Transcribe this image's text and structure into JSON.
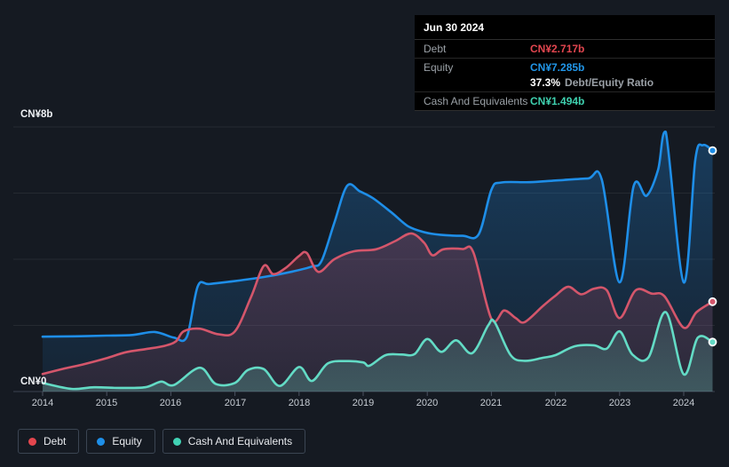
{
  "tooltip": {
    "date": "Jun 30 2024",
    "debt_label": "Debt",
    "debt_value": "CN¥2.717b",
    "equity_label": "Equity",
    "equity_value": "CN¥7.285b",
    "ratio_value": "37.3%",
    "ratio_label": "Debt/Equity Ratio",
    "cash_label": "Cash And Equivalents",
    "cash_value": "CN¥1.494b"
  },
  "legend": {
    "items": [
      {
        "label": "Debt",
        "color": "#e4464e"
      },
      {
        "label": "Equity",
        "color": "#1e8fe8"
      },
      {
        "label": "Cash And Equivalents",
        "color": "#41d2b4"
      }
    ]
  },
  "colors": {
    "background": "#151a22",
    "tooltip_bg": "#000000",
    "debt_value_text": "#e2464f",
    "equity_value_text": "#2196e8",
    "cash_value_text": "#3fd0af",
    "grid": "rgba(255,255,255,0.07)",
    "axis_line": "#3a4350"
  },
  "chart_data": {
    "type": "area",
    "x_tick_labels": [
      "2014",
      "2015",
      "2016",
      "2017",
      "2018",
      "2019",
      "2020",
      "2021",
      "2022",
      "2023",
      "2024"
    ],
    "x_ticks": [
      2014,
      2015,
      2016,
      2017,
      2018,
      2019,
      2020,
      2021,
      2022,
      2023,
      2024
    ],
    "x_range": [
      2014,
      2024.45
    ],
    "y_axis": {
      "top_label": "CN¥8b",
      "bottom_label": "CN¥0",
      "min": 0,
      "max": 8,
      "unit": "CN¥ billions"
    },
    "y_gridlines": [
      8,
      6,
      4,
      2
    ],
    "legend_position": "bottom-left",
    "series": [
      {
        "name": "Debt",
        "line_color": "#d4566b",
        "fill_from": "rgba(225,75,95,0.22)",
        "fill_to": "rgba(225,75,95,0.10)",
        "last_value": 2.717,
        "points": [
          [
            2014,
            0.53
          ],
          [
            2014.35,
            0.7
          ],
          [
            2014.65,
            0.83
          ],
          [
            2015,
            1.01
          ],
          [
            2015.3,
            1.19
          ],
          [
            2015.6,
            1.28
          ],
          [
            2015.9,
            1.38
          ],
          [
            2016.08,
            1.52
          ],
          [
            2016.2,
            1.82
          ],
          [
            2016.45,
            1.9
          ],
          [
            2016.75,
            1.73
          ],
          [
            2017,
            1.82
          ],
          [
            2017.25,
            2.85
          ],
          [
            2017.45,
            3.8
          ],
          [
            2017.6,
            3.55
          ],
          [
            2017.8,
            3.75
          ],
          [
            2018,
            4.1
          ],
          [
            2018.12,
            4.19
          ],
          [
            2018.3,
            3.62
          ],
          [
            2018.55,
            4.0
          ],
          [
            2018.85,
            4.24
          ],
          [
            2019.2,
            4.3
          ],
          [
            2019.5,
            4.55
          ],
          [
            2019.75,
            4.78
          ],
          [
            2019.95,
            4.5
          ],
          [
            2020.08,
            4.12
          ],
          [
            2020.25,
            4.3
          ],
          [
            2020.55,
            4.31
          ],
          [
            2020.72,
            4.2
          ],
          [
            2021,
            2.2
          ],
          [
            2021.2,
            2.45
          ],
          [
            2021.38,
            2.22
          ],
          [
            2021.52,
            2.1
          ],
          [
            2021.8,
            2.58
          ],
          [
            2022,
            2.9
          ],
          [
            2022.2,
            3.17
          ],
          [
            2022.4,
            2.94
          ],
          [
            2022.6,
            3.11
          ],
          [
            2022.8,
            3.06
          ],
          [
            2023,
            2.22
          ],
          [
            2023.25,
            3.06
          ],
          [
            2023.5,
            2.96
          ],
          [
            2023.7,
            2.88
          ],
          [
            2024,
            1.93
          ],
          [
            2024.2,
            2.4
          ],
          [
            2024.45,
            2.717
          ]
        ]
      },
      {
        "name": "Equity",
        "line_color": "#1e8ee8",
        "fill_from": "rgba(30,125,205,0.34)",
        "fill_to": "rgba(30,125,205,0.10)",
        "last_value": 7.285,
        "points": [
          [
            2014,
            1.66
          ],
          [
            2014.5,
            1.67
          ],
          [
            2015,
            1.69
          ],
          [
            2015.4,
            1.71
          ],
          [
            2015.75,
            1.8
          ],
          [
            2016.05,
            1.63
          ],
          [
            2016.25,
            1.66
          ],
          [
            2016.42,
            3.18
          ],
          [
            2016.6,
            3.25
          ],
          [
            2017,
            3.34
          ],
          [
            2017.5,
            3.48
          ],
          [
            2017.9,
            3.63
          ],
          [
            2018.2,
            3.78
          ],
          [
            2018.35,
            3.95
          ],
          [
            2018.55,
            5.1
          ],
          [
            2018.75,
            6.22
          ],
          [
            2018.95,
            6.05
          ],
          [
            2019.15,
            5.85
          ],
          [
            2019.45,
            5.4
          ],
          [
            2019.7,
            5.0
          ],
          [
            2019.95,
            4.82
          ],
          [
            2020.2,
            4.74
          ],
          [
            2020.55,
            4.71
          ],
          [
            2020.8,
            4.75
          ],
          [
            2021,
            6.1
          ],
          [
            2021.15,
            6.32
          ],
          [
            2021.6,
            6.33
          ],
          [
            2022,
            6.38
          ],
          [
            2022.5,
            6.44
          ],
          [
            2022.72,
            6.42
          ],
          [
            2023,
            3.3
          ],
          [
            2023.22,
            6.22
          ],
          [
            2023.42,
            5.92
          ],
          [
            2023.6,
            6.7
          ],
          [
            2023.72,
            7.85
          ],
          [
            2024,
            3.3
          ],
          [
            2024.18,
            7.0
          ],
          [
            2024.3,
            7.45
          ],
          [
            2024.45,
            7.285
          ]
        ]
      },
      {
        "name": "Cash And Equivalents",
        "line_color": "#63dbc5",
        "fill_from": "rgba(90,215,190,0.10)",
        "fill_to": "rgba(110,200,185,0.30)",
        "last_value": 1.494,
        "points": [
          [
            2014,
            0.26
          ],
          [
            2014.45,
            0.08
          ],
          [
            2014.8,
            0.13
          ],
          [
            2015.2,
            0.11
          ],
          [
            2015.6,
            0.13
          ],
          [
            2015.85,
            0.3
          ],
          [
            2016.05,
            0.2
          ],
          [
            2016.45,
            0.72
          ],
          [
            2016.7,
            0.23
          ],
          [
            2017,
            0.26
          ],
          [
            2017.2,
            0.65
          ],
          [
            2017.45,
            0.68
          ],
          [
            2017.7,
            0.17
          ],
          [
            2018,
            0.74
          ],
          [
            2018.2,
            0.32
          ],
          [
            2018.45,
            0.85
          ],
          [
            2018.75,
            0.92
          ],
          [
            2019,
            0.88
          ],
          [
            2019.1,
            0.78
          ],
          [
            2019.35,
            1.1
          ],
          [
            2019.6,
            1.12
          ],
          [
            2019.8,
            1.13
          ],
          [
            2020,
            1.59
          ],
          [
            2020.22,
            1.2
          ],
          [
            2020.45,
            1.55
          ],
          [
            2020.7,
            1.16
          ],
          [
            2020.95,
            2.0
          ],
          [
            2021.05,
            2.1
          ],
          [
            2021.3,
            1.1
          ],
          [
            2021.52,
            0.93
          ],
          [
            2021.8,
            1.02
          ],
          [
            2022,
            1.1
          ],
          [
            2022.3,
            1.37
          ],
          [
            2022.6,
            1.4
          ],
          [
            2022.8,
            1.3
          ],
          [
            2023,
            1.82
          ],
          [
            2023.2,
            1.12
          ],
          [
            2023.45,
            1.03
          ],
          [
            2023.72,
            2.4
          ],
          [
            2024,
            0.52
          ],
          [
            2024.22,
            1.63
          ],
          [
            2024.45,
            1.494
          ]
        ]
      }
    ]
  }
}
